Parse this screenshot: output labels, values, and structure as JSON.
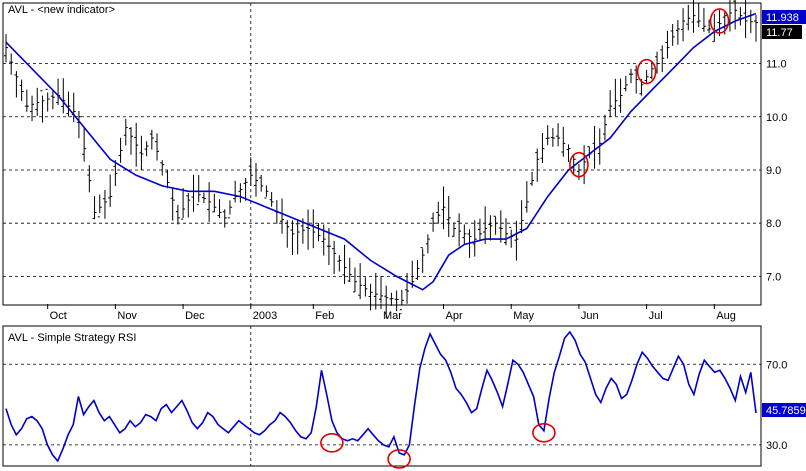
{
  "chart_data": [
    {
      "type": "candlestick",
      "title": "AVL - <new indicator>",
      "ylim": [
        6.5,
        12.1
      ],
      "y_ticks": [
        "7.0",
        "8.0",
        "9.0",
        "10.0",
        "11.0"
      ],
      "x_labels": [
        "Oct",
        "Nov",
        "Dec",
        "2003",
        "Feb",
        "Mar",
        "Apr",
        "May",
        "Jun",
        "Jul",
        "Aug"
      ],
      "last_price_label": "11.77",
      "ma_label": "11.938",
      "price_path": [
        [
          0,
          11.3
        ],
        [
          4,
          10.2
        ],
        [
          10,
          10.4
        ],
        [
          14,
          10.0
        ],
        [
          17,
          8.2
        ],
        [
          20,
          8.5
        ],
        [
          23,
          9.8
        ],
        [
          26,
          9.3
        ],
        [
          28,
          9.6
        ],
        [
          30,
          9.1
        ],
        [
          33,
          8.1
        ],
        [
          36,
          8.6
        ],
        [
          39,
          8.4
        ],
        [
          42,
          8.1
        ],
        [
          44,
          8.5
        ],
        [
          47,
          8.9
        ],
        [
          50,
          8.6
        ],
        [
          52,
          8.2
        ],
        [
          55,
          7.8
        ],
        [
          58,
          7.9
        ],
        [
          61,
          7.7
        ],
        [
          64,
          7.3
        ],
        [
          67,
          6.9
        ],
        [
          70,
          6.7
        ],
        [
          73,
          6.6
        ],
        [
          76,
          6.55
        ],
        [
          78,
          6.9
        ],
        [
          80,
          7.4
        ],
        [
          82,
          8.0
        ],
        [
          84,
          8.3
        ],
        [
          86,
          7.9
        ],
        [
          88,
          7.8
        ],
        [
          90,
          7.7
        ],
        [
          92,
          7.9
        ],
        [
          94,
          8.0
        ],
        [
          96,
          7.8
        ],
        [
          98,
          7.7
        ],
        [
          100,
          8.4
        ],
        [
          102,
          9.2
        ],
        [
          104,
          9.6
        ],
        [
          106,
          9.6
        ],
        [
          108,
          9.4
        ],
        [
          110,
          9.0
        ],
        [
          112,
          9.3
        ],
        [
          114,
          9.5
        ],
        [
          116,
          10.2
        ],
        [
          118,
          10.4
        ],
        [
          120,
          10.8
        ],
        [
          122,
          10.6
        ],
        [
          124,
          10.9
        ],
        [
          126,
          11.1
        ],
        [
          128,
          11.5
        ],
        [
          130,
          11.8
        ],
        [
          132,
          11.9
        ],
        [
          134,
          11.7
        ],
        [
          136,
          11.6
        ],
        [
          138,
          11.9
        ],
        [
          140,
          12.0
        ],
        [
          142,
          11.8
        ],
        [
          144,
          11.77
        ]
      ],
      "ma_path": [
        [
          0,
          11.4
        ],
        [
          10,
          10.4
        ],
        [
          15,
          9.8
        ],
        [
          20,
          9.2
        ],
        [
          25,
          8.9
        ],
        [
          30,
          8.7
        ],
        [
          35,
          8.6
        ],
        [
          40,
          8.6
        ],
        [
          45,
          8.5
        ],
        [
          50,
          8.3
        ],
        [
          55,
          8.1
        ],
        [
          60,
          7.9
        ],
        [
          65,
          7.7
        ],
        [
          70,
          7.3
        ],
        [
          75,
          7.0
        ],
        [
          80,
          6.75
        ],
        [
          82,
          6.9
        ],
        [
          85,
          7.4
        ],
        [
          88,
          7.6
        ],
        [
          92,
          7.7
        ],
        [
          96,
          7.7
        ],
        [
          100,
          7.9
        ],
        [
          104,
          8.5
        ],
        [
          108,
          9.0
        ],
        [
          112,
          9.3
        ],
        [
          116,
          9.6
        ],
        [
          120,
          10.1
        ],
        [
          124,
          10.5
        ],
        [
          128,
          10.9
        ],
        [
          132,
          11.3
        ],
        [
          136,
          11.6
        ],
        [
          140,
          11.8
        ],
        [
          144,
          11.938
        ]
      ],
      "highlight_circles": [
        [
          110,
          9.1
        ],
        [
          123,
          10.85
        ],
        [
          137,
          11.8
        ]
      ]
    },
    {
      "type": "line",
      "title": "AVL - Simple Strategy RSI",
      "ylim": [
        20,
        88
      ],
      "y_ticks": [
        "30.0",
        "70.0"
      ],
      "last_value_label": "45.7859",
      "values": [
        48,
        40,
        35,
        38,
        43,
        44,
        42,
        38,
        30,
        25,
        22,
        28,
        35,
        40,
        54,
        45,
        49,
        52,
        46,
        42,
        44,
        40,
        36,
        38,
        42,
        39,
        41,
        45,
        44,
        42,
        48,
        50,
        46,
        49,
        52,
        47,
        41,
        38,
        41,
        46,
        44,
        40,
        38,
        36,
        39,
        42,
        40,
        38,
        36,
        35,
        37,
        40,
        42,
        46,
        44,
        41,
        37,
        34,
        33,
        36,
        49,
        67,
        55,
        42,
        36,
        33,
        32,
        33,
        32,
        35,
        38,
        35,
        32,
        30,
        29,
        34,
        26,
        25,
        30,
        50,
        68,
        78,
        85,
        80,
        75,
        72,
        66,
        58,
        55,
        51,
        46,
        48,
        58,
        67,
        62,
        56,
        49,
        60,
        72,
        70,
        66,
        60,
        54,
        40,
        37,
        53,
        66,
        74,
        83,
        86,
        82,
        75,
        71,
        63,
        55,
        51,
        58,
        63,
        60,
        53,
        55,
        62,
        70,
        76,
        73,
        69,
        66,
        63,
        62,
        68,
        74,
        70,
        60,
        55,
        65,
        72,
        69,
        66,
        67,
        63,
        58,
        52,
        64,
        56,
        66,
        45.7859
      ],
      "highlight_circles": [
        [
          63,
          31
        ],
        [
          76,
          23
        ],
        [
          104,
          36
        ]
      ]
    }
  ],
  "colors": {
    "price": "#000000",
    "ma": "#0000cc",
    "rsi": "#0000cc",
    "circle": "#e00000",
    "label_blue": "#0000cc",
    "label_black": "#000000",
    "grid": "#000000",
    "frame": "#000000"
  }
}
